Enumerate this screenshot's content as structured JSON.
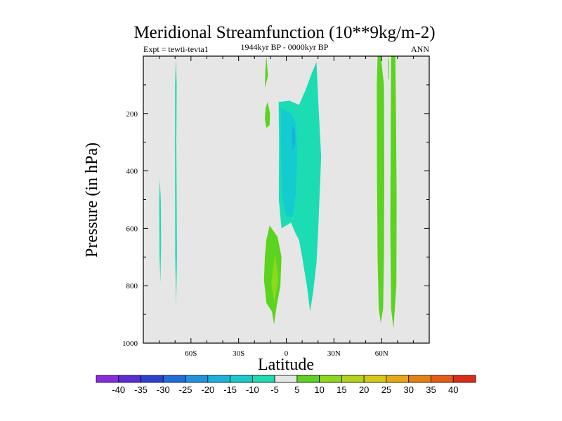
{
  "chart_data": {
    "type": "contour",
    "title": "Meridional Streamfunction (10**9kg/m-2)",
    "subtitle": "1944kyr BP - 0000kyr BP",
    "left_label": "Expt = tewti-tevta1",
    "right_label": "ANN",
    "xlabel": "Latitude",
    "ylabel": "Pressure (in hPa)",
    "xlim": [
      -90,
      90
    ],
    "ylim": [
      1000,
      0
    ],
    "x_ticks": [
      {
        "value": -60,
        "label": "60S"
      },
      {
        "value": -30,
        "label": "30S"
      },
      {
        "value": 0,
        "label": "0"
      },
      {
        "value": 30,
        "label": "30N"
      },
      {
        "value": 60,
        "label": "60N"
      }
    ],
    "y_ticks": [
      {
        "value": 200,
        "label": "200"
      },
      {
        "value": 400,
        "label": "400"
      },
      {
        "value": 600,
        "label": "600"
      },
      {
        "value": 800,
        "label": "800"
      },
      {
        "value": 1000,
        "label": "1000"
      }
    ],
    "colorbar": {
      "levels": [
        "-40",
        "-35",
        "-30",
        "-25",
        "-20",
        "-15",
        "-10",
        "-5",
        "5",
        "10",
        "15",
        "20",
        "25",
        "30",
        "35",
        "40"
      ],
      "colors": [
        "#8a2be2",
        "#5a2ad8",
        "#2a3fd4",
        "#1e6ee0",
        "#1a94e0",
        "#16b4dc",
        "#14ccd0",
        "#1cdcb4",
        "#e6e6e6",
        "#5ad41e",
        "#8cd81a",
        "#b4d416",
        "#d8c810",
        "#e8a810",
        "#e88010",
        "#e85a10",
        "#e02a14"
      ]
    },
    "regions": [
      {
        "name": "far-south-band",
        "value": -5,
        "color": "#1cdcb4",
        "points": [
          [
            -79.6,
            430
          ],
          [
            -79,
            500
          ],
          [
            -78.8,
            650
          ],
          [
            -79.2,
            790
          ],
          [
            -79.8,
            700
          ],
          [
            -80,
            500
          ]
        ]
      },
      {
        "name": "southern-thin-band",
        "value": -5,
        "color": "#1cdcb4",
        "points": [
          [
            -69.5,
            5
          ],
          [
            -69,
            100
          ],
          [
            -69.2,
            300
          ],
          [
            -69,
            500
          ],
          [
            -68.8,
            700
          ],
          [
            -69.3,
            870
          ],
          [
            -69.9,
            700
          ],
          [
            -70,
            400
          ],
          [
            -70,
            100
          ]
        ]
      },
      {
        "name": "tropical-negative-cell",
        "value": -5,
        "color": "#1cdcb4",
        "points": [
          [
            -4.8,
            160
          ],
          [
            2,
            155
          ],
          [
            8,
            170
          ],
          [
            12,
            120
          ],
          [
            16,
            60
          ],
          [
            19,
            20
          ],
          [
            20.5,
            200
          ],
          [
            22,
            350
          ],
          [
            21,
            480
          ],
          [
            20,
            620
          ],
          [
            19,
            720
          ],
          [
            17,
            820
          ],
          [
            15,
            890
          ],
          [
            13,
            800
          ],
          [
            10,
            700
          ],
          [
            8,
            640
          ],
          [
            6,
            620
          ],
          [
            3,
            580
          ],
          [
            -3,
            600
          ],
          [
            -4.7,
            500
          ],
          [
            -4.5,
            300
          ]
        ]
      },
      {
        "name": "tropical-inner-negative",
        "value": -10,
        "color": "#14ccd0",
        "points": [
          [
            -3.5,
            180
          ],
          [
            3,
            200
          ],
          [
            6,
            230
          ],
          [
            7,
            350
          ],
          [
            6,
            480
          ],
          [
            4,
            560
          ],
          [
            0,
            560
          ],
          [
            -2.5,
            500
          ],
          [
            -3.5,
            300
          ]
        ]
      },
      {
        "name": "tropical-core-negative",
        "value": -15,
        "color": "#16b4dc",
        "points": [
          [
            3.5,
            240
          ],
          [
            5.5,
            260
          ],
          [
            5.8,
            310
          ],
          [
            4,
            330
          ],
          [
            3.4,
            290
          ]
        ]
      },
      {
        "name": "upper-south-positive-strip",
        "value": 5,
        "color": "#5ad41e",
        "points": [
          [
            -12.5,
            0
          ],
          [
            -13.2,
            50
          ],
          [
            -13.5,
            110
          ],
          [
            -11.5,
            70
          ]
        ]
      },
      {
        "name": "upper-south-positive-blob",
        "value": 5,
        "color": "#5ad41e",
        "points": [
          [
            -11.7,
            160
          ],
          [
            -10.2,
            200
          ],
          [
            -10.5,
            240
          ],
          [
            -12.5,
            250
          ],
          [
            -13.5,
            220
          ],
          [
            -13,
            180
          ]
        ]
      },
      {
        "name": "lower-south-positive-cell",
        "value": 5,
        "color": "#5ad41e",
        "points": [
          [
            -10.5,
            590
          ],
          [
            -5.5,
            630
          ],
          [
            -3,
            700
          ],
          [
            -3.7,
            800
          ],
          [
            -6,
            870
          ],
          [
            -7.7,
            935
          ],
          [
            -9,
            890
          ],
          [
            -12.5,
            860
          ],
          [
            -14,
            780
          ],
          [
            -13.5,
            700
          ],
          [
            -12.5,
            640
          ]
        ]
      },
      {
        "name": "lower-south-positive-core",
        "value": 10,
        "color": "#8cd81a",
        "points": [
          [
            -7,
            690
          ],
          [
            -5,
            780
          ],
          [
            -7.5,
            860
          ],
          [
            -9.5,
            790
          ]
        ]
      },
      {
        "name": "northern-band-a",
        "value": 5,
        "color": "#5ad41e",
        "points": [
          [
            57.5,
            0
          ],
          [
            59.5,
            0
          ],
          [
            61.5,
            100
          ],
          [
            61.7,
            400
          ],
          [
            61.5,
            700
          ],
          [
            61,
            880
          ],
          [
            59.5,
            930
          ],
          [
            58.2,
            880
          ],
          [
            57.5,
            700
          ],
          [
            57.1,
            400
          ],
          [
            57,
            100
          ]
        ]
      },
      {
        "name": "northern-band-b",
        "value": 5,
        "color": "#5ad41e",
        "points": [
          [
            66,
            0
          ],
          [
            68.7,
            0
          ],
          [
            69.1,
            200
          ],
          [
            69.5,
            500
          ],
          [
            69.3,
            800
          ],
          [
            67.5,
            950
          ],
          [
            66,
            880
          ],
          [
            65.5,
            600
          ],
          [
            65.7,
            300
          ]
        ]
      },
      {
        "name": "northern-narrow-strip",
        "value": 5,
        "color": "#5ad41e",
        "points": [
          [
            64,
            0
          ],
          [
            64.6,
            20
          ],
          [
            64.7,
            80
          ],
          [
            64.3,
            80
          ]
        ]
      }
    ]
  }
}
